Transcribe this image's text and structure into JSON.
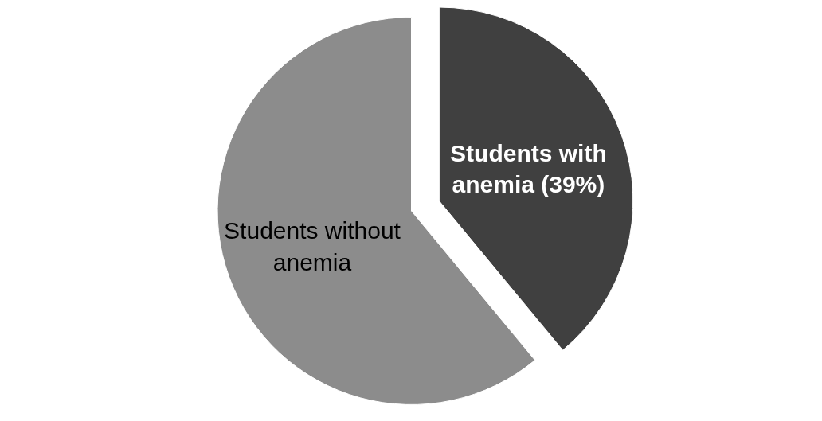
{
  "chart_data": {
    "type": "pie",
    "categories": [
      "Students with anemia (39%)",
      "Students without anemia"
    ],
    "values": [
      39,
      61
    ],
    "colors": [
      "#404040",
      "#8c8c8c"
    ]
  }
}
